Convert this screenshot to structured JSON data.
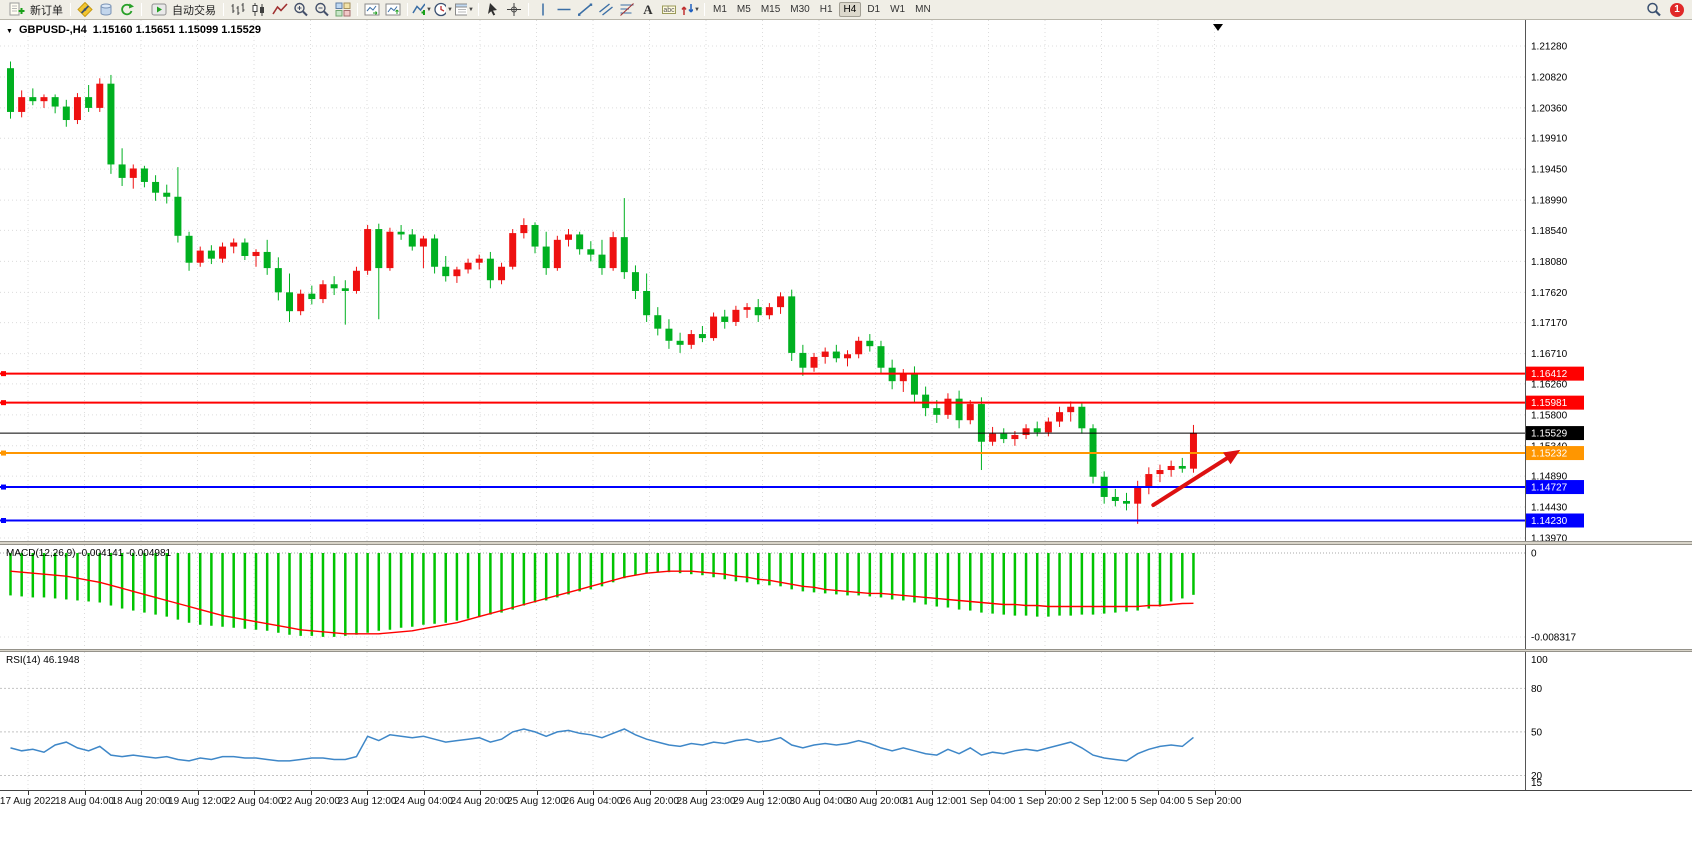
{
  "toolbar": {
    "new_order_label": "新订单",
    "autotrading_label": "自动交易",
    "timeframes": [
      "M1",
      "M5",
      "M15",
      "M30",
      "H1",
      "H4",
      "D1",
      "W1",
      "MN"
    ],
    "active_timeframe": "H4",
    "notification_badge": "1"
  },
  "chart": {
    "symbol_label": "GBPUSD-,H4",
    "ohlc_label": "1.15160 1.15651 1.15099 1.15529",
    "macd_label": "MACD(12,26,9) -0.004141 -0.004981",
    "rsi_label": "RSI(14) 46.1948",
    "colors": {
      "up": "#EE1111",
      "down": "#00B020",
      "macd_hist": "#00C400",
      "macd_signal": "#FF0000",
      "rsi_line": "#3E87C8",
      "grid": "#DCDCDC",
      "arrow": "#DD1111"
    }
  },
  "chart_data": [
    {
      "type": "candlestick",
      "title": "GBPUSD H4",
      "y_range": [
        1.13926,
        1.21666
      ],
      "y_ticks": [
        "1.21280",
        "1.20820",
        "1.20360",
        "1.19910",
        "1.19450",
        "1.18990",
        "1.18540",
        "1.18080",
        "1.17620",
        "1.17170",
        "1.16710",
        "1.16260",
        "1.15800",
        "1.15340",
        "1.14890",
        "1.14430",
        "1.13970"
      ],
      "x_labels": [
        "17 Aug 2022",
        "18 Aug 04:00",
        "18 Aug 20:00",
        "19 Aug 12:00",
        "22 Aug 04:00",
        "22 Aug 20:00",
        "23 Aug 12:00",
        "24 Aug 04:00",
        "24 Aug 20:00",
        "25 Aug 12:00",
        "26 Aug 04:00",
        "26 Aug 20:00",
        "28 Aug 23:00",
        "29 Aug 12:00",
        "30 Aug 04:00",
        "30 Aug 20:00",
        "31 Aug 12:00",
        "1 Sep 04:00",
        "1 Sep 20:00",
        "2 Sep 12:00",
        "5 Sep 04:00",
        "5 Sep 20:00"
      ],
      "candles_ohlc": [
        [
          1.2095,
          1.2105,
          1.202,
          1.203
        ],
        [
          1.203,
          1.2062,
          1.2022,
          1.2052
        ],
        [
          1.2052,
          1.2065,
          1.204,
          1.2046
        ],
        [
          1.2046,
          1.2056,
          1.2036,
          1.2052
        ],
        [
          1.2052,
          1.2056,
          1.2028,
          1.2038
        ],
        [
          1.2038,
          1.2048,
          1.2008,
          1.2018
        ],
        [
          1.2018,
          1.2058,
          1.2012,
          1.2052
        ],
        [
          1.2052,
          1.207,
          1.203,
          1.2036
        ],
        [
          1.2036,
          1.208,
          1.203,
          1.2072
        ],
        [
          1.2072,
          1.2085,
          1.1938,
          1.1952
        ],
        [
          1.1952,
          1.1976,
          1.192,
          1.1932
        ],
        [
          1.1932,
          1.1952,
          1.1916,
          1.1946
        ],
        [
          1.1946,
          1.195,
          1.1918,
          1.1926
        ],
        [
          1.1926,
          1.1936,
          1.1898,
          1.191
        ],
        [
          1.191,
          1.1922,
          1.1894,
          1.1904
        ],
        [
          1.1904,
          1.1948,
          1.1836,
          1.1846
        ],
        [
          1.1846,
          1.1852,
          1.1794,
          1.1806
        ],
        [
          1.1806,
          1.183,
          1.18,
          1.1824
        ],
        [
          1.1824,
          1.1832,
          1.1804,
          1.1812
        ],
        [
          1.1812,
          1.1836,
          1.1806,
          1.183
        ],
        [
          1.183,
          1.1842,
          1.182,
          1.1836
        ],
        [
          1.1836,
          1.1842,
          1.181,
          1.1816
        ],
        [
          1.1816,
          1.1826,
          1.18,
          1.1822
        ],
        [
          1.1822,
          1.184,
          1.1788,
          1.1798
        ],
        [
          1.1798,
          1.1814,
          1.175,
          1.1762
        ],
        [
          1.1762,
          1.179,
          1.1718,
          1.1734
        ],
        [
          1.1734,
          1.1766,
          1.1728,
          1.176
        ],
        [
          1.176,
          1.1772,
          1.1744,
          1.1752
        ],
        [
          1.1752,
          1.178,
          1.1746,
          1.1774
        ],
        [
          1.1774,
          1.1786,
          1.1758,
          1.1768
        ],
        [
          1.1768,
          1.178,
          1.1714,
          1.1764
        ],
        [
          1.1764,
          1.18,
          1.176,
          1.1794
        ],
        [
          1.1794,
          1.1862,
          1.1788,
          1.1856
        ],
        [
          1.1856,
          1.1864,
          1.1722,
          1.1798
        ],
        [
          1.1798,
          1.1858,
          1.1794,
          1.1852
        ],
        [
          1.1852,
          1.1862,
          1.184,
          1.1848
        ],
        [
          1.1848,
          1.1856,
          1.1824,
          1.183
        ],
        [
          1.183,
          1.1846,
          1.1798,
          1.1842
        ],
        [
          1.1842,
          1.1848,
          1.179,
          1.18
        ],
        [
          1.18,
          1.1816,
          1.1778,
          1.1786
        ],
        [
          1.1786,
          1.18,
          1.1776,
          1.1796
        ],
        [
          1.1796,
          1.1812,
          1.179,
          1.1806
        ],
        [
          1.1806,
          1.1818,
          1.1796,
          1.1812
        ],
        [
          1.1812,
          1.1822,
          1.1768,
          1.178
        ],
        [
          1.178,
          1.1806,
          1.1774,
          1.18
        ],
        [
          1.18,
          1.1856,
          1.1796,
          1.185
        ],
        [
          1.185,
          1.1872,
          1.1842,
          1.1862
        ],
        [
          1.1862,
          1.1866,
          1.182,
          1.183
        ],
        [
          1.183,
          1.1852,
          1.1788,
          1.1798
        ],
        [
          1.1798,
          1.1846,
          1.1794,
          1.184
        ],
        [
          1.184,
          1.1856,
          1.183,
          1.1848
        ],
        [
          1.1848,
          1.1852,
          1.1818,
          1.1826
        ],
        [
          1.1826,
          1.1838,
          1.1808,
          1.1818
        ],
        [
          1.1818,
          1.184,
          1.1788,
          1.1798
        ],
        [
          1.1798,
          1.1852,
          1.1794,
          1.1844
        ],
        [
          1.1844,
          1.1902,
          1.1782,
          1.1792
        ],
        [
          1.1792,
          1.1802,
          1.1752,
          1.1764
        ],
        [
          1.1764,
          1.179,
          1.1718,
          1.1728
        ],
        [
          1.1728,
          1.174,
          1.1698,
          1.1708
        ],
        [
          1.1708,
          1.1722,
          1.1678,
          1.169
        ],
        [
          1.169,
          1.1702,
          1.1672,
          1.1684
        ],
        [
          1.1684,
          1.1706,
          1.1678,
          1.17
        ],
        [
          1.17,
          1.1712,
          1.1688,
          1.1694
        ],
        [
          1.1694,
          1.1732,
          1.169,
          1.1726
        ],
        [
          1.1726,
          1.1736,
          1.1708,
          1.1718
        ],
        [
          1.1718,
          1.1742,
          1.1712,
          1.1736
        ],
        [
          1.1736,
          1.1746,
          1.1724,
          1.174
        ],
        [
          1.174,
          1.1752,
          1.1718,
          1.1728
        ],
        [
          1.1728,
          1.1746,
          1.1722,
          1.174
        ],
        [
          1.174,
          1.1762,
          1.173,
          1.1756
        ],
        [
          1.1756,
          1.1766,
          1.166,
          1.1672
        ],
        [
          1.1672,
          1.1684,
          1.1638,
          1.165
        ],
        [
          1.165,
          1.1672,
          1.1644,
          1.1666
        ],
        [
          1.1666,
          1.168,
          1.1656,
          1.1674
        ],
        [
          1.1674,
          1.1684,
          1.1658,
          1.1664
        ],
        [
          1.1664,
          1.1676,
          1.1652,
          1.167
        ],
        [
          1.167,
          1.1696,
          1.1664,
          1.169
        ],
        [
          1.169,
          1.17,
          1.1674,
          1.1682
        ],
        [
          1.1682,
          1.169,
          1.164,
          1.165
        ],
        [
          1.165,
          1.1662,
          1.1618,
          1.163
        ],
        [
          1.163,
          1.1648,
          1.1614,
          1.1642
        ],
        [
          1.1642,
          1.1652,
          1.1598,
          1.161
        ],
        [
          1.161,
          1.1622,
          1.1578,
          1.159
        ],
        [
          1.159,
          1.1602,
          1.1568,
          1.158
        ],
        [
          1.158,
          1.1612,
          1.1574,
          1.1604
        ],
        [
          1.1604,
          1.1616,
          1.156,
          1.1572
        ],
        [
          1.1572,
          1.1602,
          1.1566,
          1.1596
        ],
        [
          1.1596,
          1.1606,
          1.1498,
          1.154
        ],
        [
          1.154,
          1.1562,
          1.1534,
          1.1552
        ],
        [
          1.1552,
          1.156,
          1.1538,
          1.1544
        ],
        [
          1.1544,
          1.1556,
          1.1534,
          1.155
        ],
        [
          1.155,
          1.1566,
          1.1544,
          1.156
        ],
        [
          1.156,
          1.157,
          1.1548,
          1.1554
        ],
        [
          1.1554,
          1.1576,
          1.1548,
          1.157
        ],
        [
          1.157,
          1.1592,
          1.1562,
          1.1584
        ],
        [
          1.1584,
          1.16,
          1.157,
          1.1592
        ],
        [
          1.1592,
          1.1598,
          1.1552,
          1.156
        ],
        [
          1.156,
          1.1566,
          1.1478,
          1.1488
        ],
        [
          1.1488,
          1.1496,
          1.1448,
          1.1458
        ],
        [
          1.1458,
          1.147,
          1.1444,
          1.1452
        ],
        [
          1.1452,
          1.1464,
          1.1438,
          1.1448
        ],
        [
          1.1448,
          1.1482,
          1.1418,
          1.1472
        ],
        [
          1.1472,
          1.1502,
          1.1462,
          1.1492
        ],
        [
          1.1492,
          1.1506,
          1.148,
          1.1498
        ],
        [
          1.1498,
          1.1512,
          1.1488,
          1.1504
        ],
        [
          1.1504,
          1.1516,
          1.1494,
          1.15
        ],
        [
          1.15,
          1.1565,
          1.1494,
          1.1553
        ]
      ],
      "hlines": [
        {
          "price": 1.16412,
          "label": "1.16412",
          "color": "#FF0000",
          "role": "resistance-upper",
          "handle": true
        },
        {
          "price": 1.15981,
          "label": "1.15981",
          "color": "#FF0000",
          "role": "resistance-lower",
          "handle": true
        },
        {
          "price": 1.15529,
          "label": "1.15529",
          "color": "#000000",
          "role": "current-price",
          "handle": false
        },
        {
          "price": 1.15232,
          "label": "1.15232",
          "color": "#FF9600",
          "role": "pivot",
          "handle": true
        },
        {
          "price": 1.14727,
          "label": "1.14727",
          "color": "#0000FF",
          "role": "support-upper",
          "handle": true
        },
        {
          "price": 1.1423,
          "label": "1.14230",
          "color": "#0000FF",
          "role": "support-lower",
          "handle": true
        }
      ],
      "annotation_arrow": {
        "from": {
          "x_index": 102.4,
          "price": 1.1446
        },
        "to": {
          "x_index": 110.2,
          "price": 1.1528
        }
      }
    },
    {
      "type": "bar",
      "title": "MACD(12,26,9)",
      "current": {
        "macd": -0.004141,
        "signal": -0.004981
      },
      "y_ticks": [
        "0",
        "-0.008317"
      ],
      "values": [
        -0.0042,
        -0.0043,
        -0.0044,
        -0.0044,
        -0.0045,
        -0.0046,
        -0.0047,
        -0.0048,
        -0.0049,
        -0.0052,
        -0.0055,
        -0.0057,
        -0.0059,
        -0.0061,
        -0.0063,
        -0.0066,
        -0.0069,
        -0.0071,
        -0.0072,
        -0.0073,
        -0.0074,
        -0.0075,
        -0.0076,
        -0.0077,
        -0.0079,
        -0.0081,
        -0.0082,
        -0.0082,
        -0.0083,
        -0.0083,
        -0.0082,
        -0.0081,
        -0.0079,
        -0.0077,
        -0.0076,
        -0.0074,
        -0.0073,
        -0.0071,
        -0.007,
        -0.0069,
        -0.0067,
        -0.0065,
        -0.0063,
        -0.0061,
        -0.0059,
        -0.0056,
        -0.0052,
        -0.0049,
        -0.0047,
        -0.0044,
        -0.0041,
        -0.0038,
        -0.0036,
        -0.0033,
        -0.0029,
        -0.0025,
        -0.0022,
        -0.002,
        -0.0019,
        -0.0019,
        -0.002,
        -0.0021,
        -0.0022,
        -0.0024,
        -0.0026,
        -0.0028,
        -0.0029,
        -0.0031,
        -0.0032,
        -0.0033,
        -0.0036,
        -0.0038,
        -0.0039,
        -0.004,
        -0.0041,
        -0.0042,
        -0.0042,
        -0.0043,
        -0.0044,
        -0.0046,
        -0.0047,
        -0.0049,
        -0.0051,
        -0.0053,
        -0.0054,
        -0.0056,
        -0.0057,
        -0.0059,
        -0.006,
        -0.0061,
        -0.0062,
        -0.0062,
        -0.0063,
        -0.0063,
        -0.0062,
        -0.0062,
        -0.0061,
        -0.0061,
        -0.006,
        -0.0059,
        -0.0058,
        -0.0057,
        -0.0055,
        -0.0053,
        -0.0048,
        -0.0045,
        -0.004141
      ],
      "signal": [
        -0.0018,
        -0.0019,
        -0.002,
        -0.0021,
        -0.0022,
        -0.0023,
        -0.0025,
        -0.0027,
        -0.0029,
        -0.0032,
        -0.0035,
        -0.0038,
        -0.0041,
        -0.0044,
        -0.0047,
        -0.005,
        -0.0053,
        -0.0056,
        -0.0059,
        -0.0062,
        -0.0064,
        -0.0066,
        -0.0068,
        -0.007,
        -0.0072,
        -0.0074,
        -0.0076,
        -0.0077,
        -0.0078,
        -0.0079,
        -0.008,
        -0.008,
        -0.008,
        -0.008,
        -0.0079,
        -0.0078,
        -0.0077,
        -0.0075,
        -0.0073,
        -0.0071,
        -0.0069,
        -0.0066,
        -0.0063,
        -0.006,
        -0.0057,
        -0.0054,
        -0.0051,
        -0.0048,
        -0.0045,
        -0.0042,
        -0.0039,
        -0.0036,
        -0.0033,
        -0.003,
        -0.0027,
        -0.0024,
        -0.0022,
        -0.002,
        -0.0019,
        -0.0018,
        -0.0018,
        -0.0018,
        -0.0019,
        -0.002,
        -0.0021,
        -0.0023,
        -0.0024,
        -0.0026,
        -0.0027,
        -0.0029,
        -0.0031,
        -0.0033,
        -0.0034,
        -0.0036,
        -0.0037,
        -0.0038,
        -0.0039,
        -0.004,
        -0.004,
        -0.0041,
        -0.0042,
        -0.0043,
        -0.0044,
        -0.0045,
        -0.0046,
        -0.0047,
        -0.0048,
        -0.0049,
        -0.005,
        -0.0051,
        -0.0051,
        -0.0052,
        -0.0052,
        -0.0053,
        -0.0053,
        -0.0053,
        -0.0053,
        -0.0053,
        -0.0053,
        -0.0053,
        -0.0053,
        -0.0053,
        -0.0052,
        -0.0052,
        -0.0051,
        -0.005,
        -0.004981
      ]
    },
    {
      "type": "line",
      "title": "RSI(14)",
      "current": 46.1948,
      "levels": [
        100,
        80,
        50,
        20,
        15
      ],
      "values": [
        39,
        37,
        38,
        36,
        41,
        43,
        39,
        37,
        40,
        34,
        33,
        34,
        33,
        32,
        33,
        31,
        30,
        32,
        31,
        33,
        33,
        32,
        32,
        31,
        30,
        30,
        31,
        32,
        32,
        31,
        31,
        33,
        47,
        44,
        48,
        47,
        46,
        47,
        45,
        43,
        44,
        45,
        46,
        43,
        45,
        50,
        52,
        50,
        47,
        50,
        51,
        49,
        48,
        46,
        49,
        52,
        48,
        45,
        43,
        41,
        40,
        42,
        41,
        43,
        42,
        44,
        45,
        43,
        44,
        46,
        41,
        39,
        41,
        42,
        41,
        42,
        44,
        42,
        39,
        37,
        39,
        37,
        35,
        34,
        38,
        35,
        39,
        34,
        36,
        35,
        37,
        38,
        37,
        39,
        41,
        43,
        39,
        34,
        32,
        31,
        30,
        35,
        38,
        40,
        41,
        40,
        46.19
      ]
    }
  ]
}
